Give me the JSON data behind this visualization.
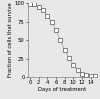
{
  "x": [
    0,
    1,
    2,
    3,
    4,
    5,
    6,
    7,
    8,
    9,
    10,
    11,
    12,
    13,
    14,
    15
  ],
  "y": [
    99,
    98,
    95,
    90,
    83,
    74,
    63,
    50,
    37,
    26,
    17,
    10,
    5,
    3,
    2,
    1
  ],
  "xlabel": "Days of treatment",
  "ylabel": "Fraction of cells that survive",
  "xlim": [
    -0.5,
    15.5
  ],
  "ylim": [
    0,
    100
  ],
  "xticks": [
    0,
    2,
    4,
    6,
    8,
    10,
    12,
    14
  ],
  "yticks": [
    0,
    25,
    50,
    75,
    100
  ],
  "marker": "s",
  "markersize": 2.2,
  "linewidth": 0.6,
  "line_color": "#aaaaaa",
  "marker_color": "white",
  "marker_edge_color": "#555555",
  "background_color": "#e8e8e8",
  "tick_fontsize": 3.8,
  "label_fontsize": 3.8,
  "figsize": [
    1.0,
    0.99
  ],
  "dpi": 100
}
